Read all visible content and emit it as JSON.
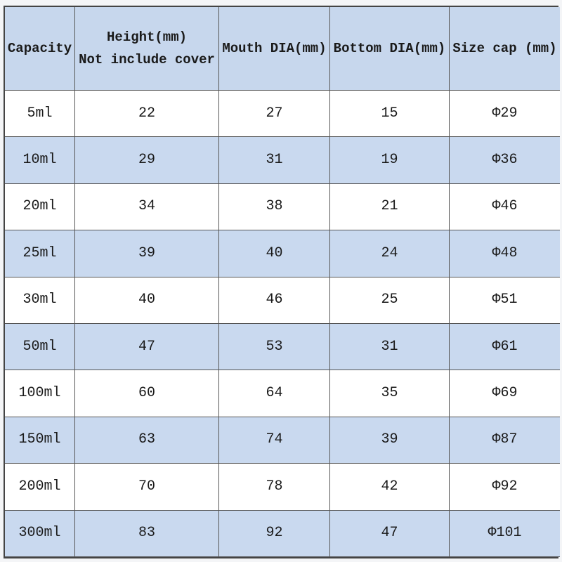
{
  "table": {
    "header": [
      [
        "Capacity"
      ],
      [
        "Height(mm)",
        "Not include cover"
      ],
      [
        "Mouth DIA(mm)"
      ],
      [
        "Bottom DIA(mm)"
      ],
      [
        "Size cap (mm)"
      ]
    ],
    "rows": [
      [
        "5ml",
        22,
        27,
        15,
        "Φ29"
      ],
      [
        "10ml",
        29,
        31,
        19,
        "Φ36"
      ],
      [
        "20ml",
        34,
        38,
        21,
        "Φ46"
      ],
      [
        "25ml",
        39,
        40,
        24,
        "Φ48"
      ],
      [
        "30ml",
        40,
        46,
        25,
        "Φ51"
      ],
      [
        "50ml",
        47,
        53,
        31,
        "Φ61"
      ],
      [
        "100ml",
        60,
        64,
        35,
        "Φ69"
      ],
      [
        "150ml",
        63,
        74,
        39,
        "Φ87"
      ],
      [
        "200ml",
        70,
        78,
        42,
        "Φ92"
      ],
      [
        "300ml",
        83,
        92,
        47,
        "Φ101"
      ]
    ]
  }
}
